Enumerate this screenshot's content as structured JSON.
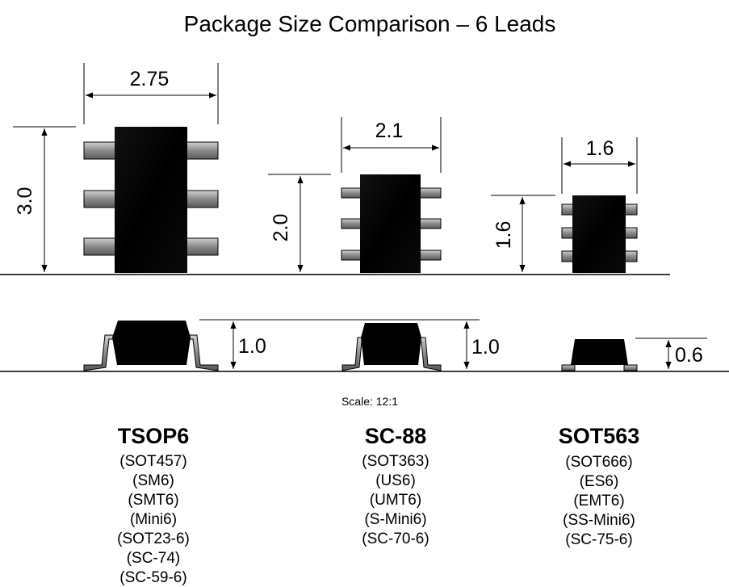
{
  "title": "Package Size Comparison – 6 Leads",
  "scale_label": "Scale: 12:1",
  "colors": {
    "body": "#000000",
    "lead": "#8a8a8a",
    "line": "#000000",
    "background": "#ffffff"
  },
  "packages": [
    {
      "name": "TSOP6",
      "width": "2.75",
      "length": "3.0",
      "height": "1.0",
      "aliases": [
        "(SOT457)",
        "(SM6)",
        "(SMT6)",
        "(Mini6)",
        "(SOT23-6)",
        "(SC-74)",
        "(SC-59-6)"
      ]
    },
    {
      "name": "SC-88",
      "width": "2.1",
      "length": "2.0",
      "height": "1.0",
      "aliases": [
        "(SOT363)",
        "(US6)",
        "(UMT6)",
        "(S-Mini6)",
        "(SC-70-6)"
      ]
    },
    {
      "name": "SOT563",
      "width": "1.6",
      "length": "1.6",
      "height": "0.6",
      "aliases": [
        "(SOT666)",
        "(ES6)",
        "(EMT6)",
        "(SS-Mini6)",
        "(SC-75-6)"
      ]
    }
  ]
}
